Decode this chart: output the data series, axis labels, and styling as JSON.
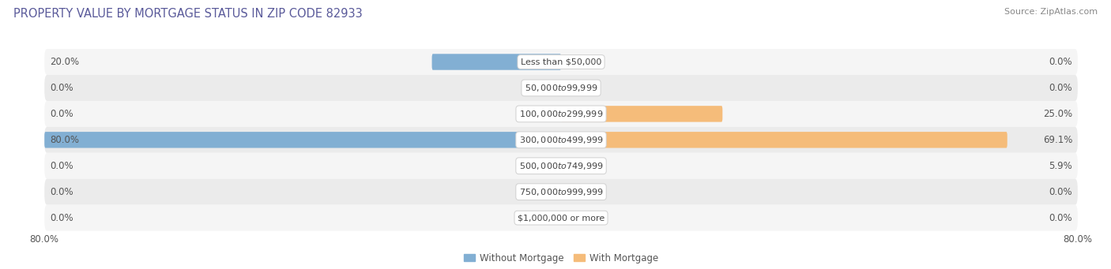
{
  "title": "PROPERTY VALUE BY MORTGAGE STATUS IN ZIP CODE 82933",
  "source": "Source: ZipAtlas.com",
  "categories": [
    "Less than $50,000",
    "$50,000 to $99,999",
    "$100,000 to $299,999",
    "$300,000 to $499,999",
    "$500,000 to $749,999",
    "$750,000 to $999,999",
    "$1,000,000 or more"
  ],
  "without_mortgage": [
    20.0,
    0.0,
    0.0,
    80.0,
    0.0,
    0.0,
    0.0
  ],
  "with_mortgage": [
    0.0,
    0.0,
    25.0,
    69.1,
    5.9,
    0.0,
    0.0
  ],
  "without_mortgage_color": "#82afd3",
  "with_mortgage_color": "#f5bc7a",
  "bar_height": 0.62,
  "xlim": 80.0,
  "row_bg_color_odd": "#ebebeb",
  "row_bg_color_even": "#f5f5f5",
  "title_color": "#5a5a9a",
  "title_fontsize": 10.5,
  "source_fontsize": 8,
  "label_fontsize": 8.5,
  "category_fontsize": 8,
  "tick_fontsize": 8.5,
  "legend_fontsize": 8.5
}
